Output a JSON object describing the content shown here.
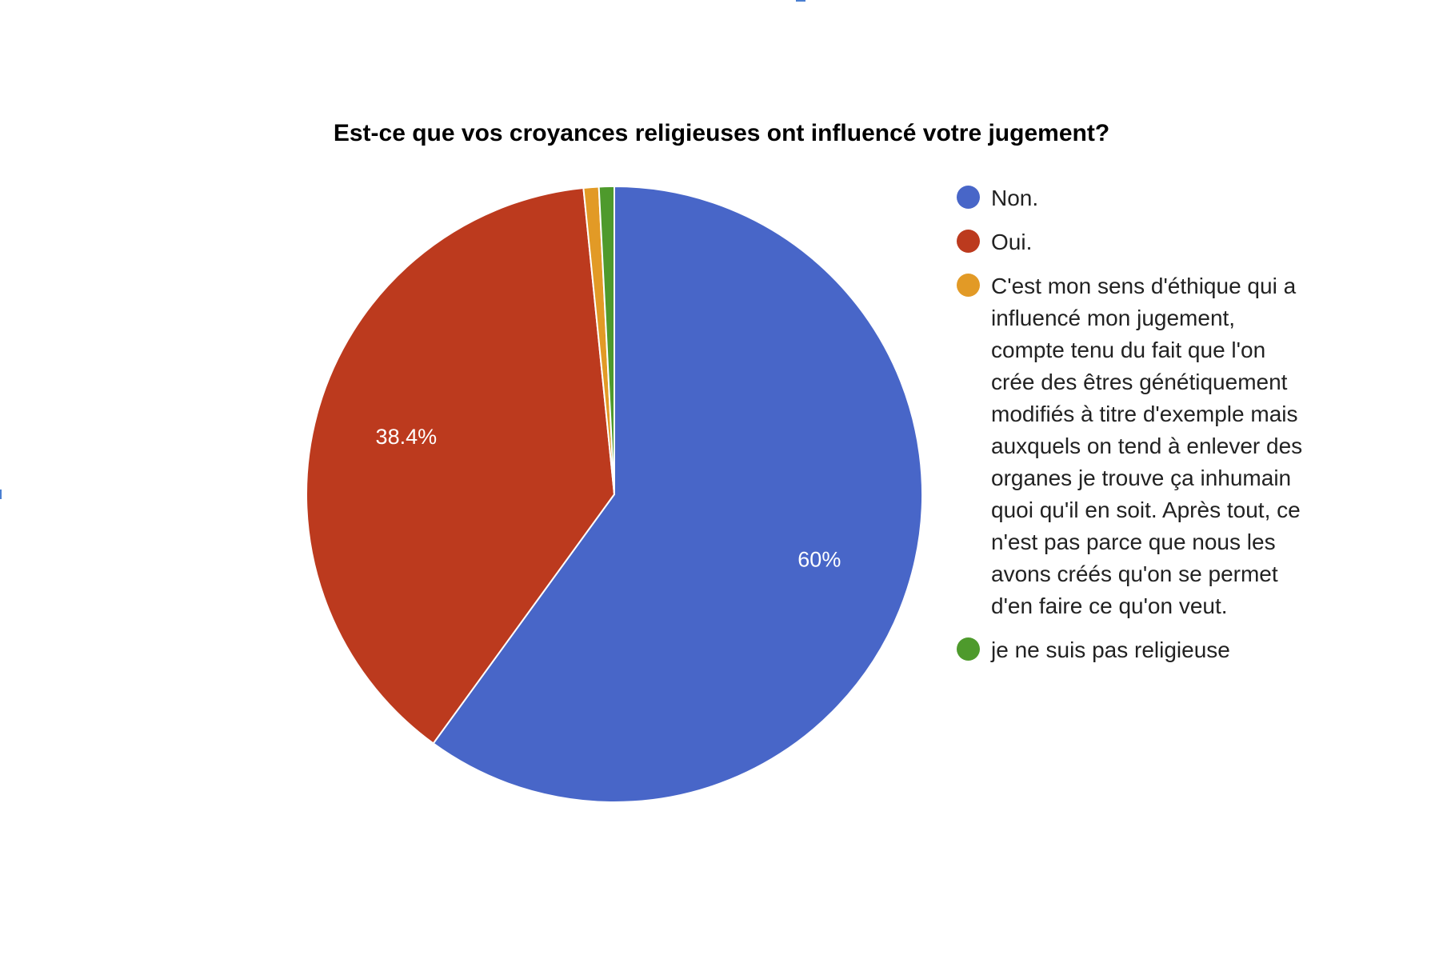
{
  "chart_data": {
    "type": "pie",
    "title": "Est-ce que vos croyances religieuses ont influencé votre jugement?",
    "slices": [
      {
        "label": "Non.",
        "value": 60.0,
        "color": "#4866c8",
        "data_label": "60%"
      },
      {
        "label": "Oui.",
        "value": 38.4,
        "color": "#bc3a1e",
        "data_label": "38.4%"
      },
      {
        "label": "C'est mon sens d'éthique qui a influencé mon jugement, compte tenu du fait que l'on crée des êtres génétiquement modifiés à titre d'exemple mais auxquels on tend à enlever des organes je trouve ça inhumain quoi qu'il en soit. Après tout, ce n'est pas parce que nous les avons créés qu'on se permet d'en faire ce qu'on veut.",
        "value": 0.8,
        "color": "#e29a26",
        "data_label": ""
      },
      {
        "label": "je ne suis pas religieuse",
        "value": 0.8,
        "color": "#4e9a2c",
        "data_label": ""
      }
    ],
    "legend_position": "right"
  }
}
